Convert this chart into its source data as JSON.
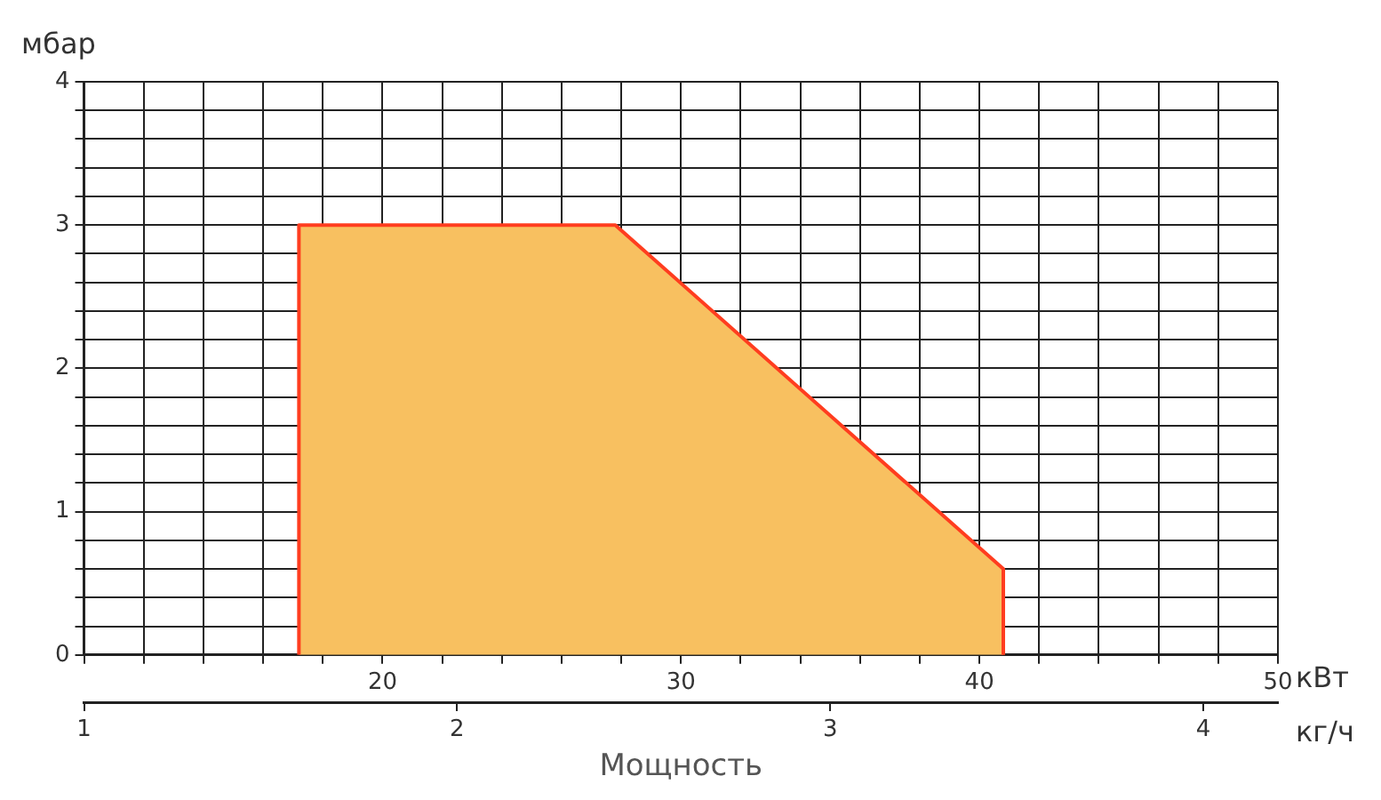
{
  "chart_data": {
    "type": "area",
    "ylabel": "мбар",
    "xlabel": "кВт",
    "x2label": "кг/ч",
    "annotations": [
      "Мощность"
    ],
    "series": [
      {
        "color": "#ff3d1f",
        "x": [
          17.2,
          17.2,
          27.8,
          40.8,
          40.8
        ],
        "values": [
          0,
          3,
          3,
          0.6,
          0
        ]
      }
    ],
    "xlim": [
      10,
      50
    ],
    "xticks": [
      {
        "value": 10,
        "label": null
      },
      {
        "value": 12,
        "label": null
      },
      {
        "value": 14,
        "label": null
      },
      {
        "value": 16,
        "label": null
      },
      {
        "value": 18,
        "label": null
      },
      20,
      {
        "value": 22,
        "label": null
      },
      {
        "value": 24,
        "label": null
      },
      {
        "value": 26,
        "label": null
      },
      {
        "value": 28,
        "label": null
      },
      30,
      {
        "value": 32,
        "label": null
      },
      {
        "value": 34,
        "label": null
      },
      {
        "value": 36,
        "label": null
      },
      {
        "value": 38,
        "label": null
      },
      40,
      {
        "value": 42,
        "label": null
      },
      {
        "value": 44,
        "label": null
      },
      {
        "value": 46,
        "label": null
      },
      {
        "value": 48,
        "label": null
      },
      50
    ],
    "x2lim": [
      1,
      4.2
    ],
    "x2ticks": [
      1,
      2,
      3,
      4
    ],
    "ylim": [
      0,
      4
    ],
    "yticks": [
      0,
      {
        "value": 0.2,
        "label": null
      },
      {
        "value": 0.4,
        "label": null
      },
      {
        "value": 0.6,
        "label": null
      },
      {
        "value": 0.8,
        "label": null
      },
      1,
      {
        "value": 1.2,
        "label": null
      },
      {
        "value": 1.4,
        "label": null
      },
      {
        "value": 1.6,
        "label": null
      },
      {
        "value": 1.8,
        "label": null
      },
      2,
      {
        "value": 2.2,
        "label": null
      },
      {
        "value": 2.4,
        "label": null
      },
      {
        "value": 2.6,
        "label": null
      },
      {
        "value": 2.8,
        "label": null
      },
      3,
      {
        "value": 3.2,
        "label": null
      },
      {
        "value": 3.4,
        "label": null
      },
      {
        "value": 3.6,
        "label": null
      },
      {
        "value": 3.8,
        "label": null
      },
      4
    ],
    "grid": true,
    "legend": false
  }
}
